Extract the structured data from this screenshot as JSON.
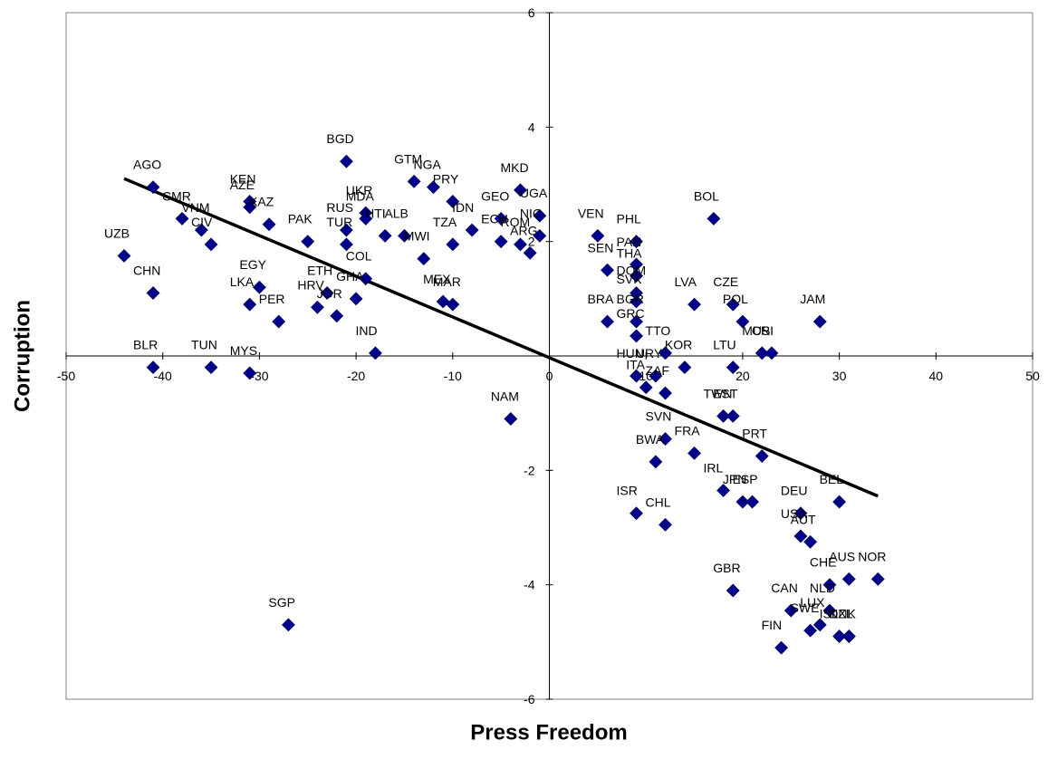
{
  "chart_data": {
    "type": "scatter",
    "title": "",
    "xlabel": "Press Freedom",
    "ylabel": "Corruption",
    "xlim": [
      -50,
      50
    ],
    "ylim": [
      -6,
      6
    ],
    "x_ticks": [
      -50,
      -40,
      -30,
      -20,
      -10,
      0,
      10,
      20,
      30,
      40,
      50
    ],
    "y_ticks": [
      -6,
      -4,
      -2,
      0,
      2,
      4,
      6
    ],
    "grid": false,
    "legend": "none",
    "marker_color": "#00008B",
    "trendline": {
      "color": "#000000",
      "x": [
        -44,
        34
      ],
      "y": [
        3.1,
        -2.45
      ]
    },
    "points": [
      {
        "label": "AGO",
        "x": -41.0,
        "y": 2.95
      },
      {
        "label": "CMR",
        "x": -38.0,
        "y": 2.4
      },
      {
        "label": "VNM",
        "x": -36.0,
        "y": 2.2
      },
      {
        "label": "CIV",
        "x": -35.0,
        "y": 1.95
      },
      {
        "label": "UZB",
        "x": -44.0,
        "y": 1.75
      },
      {
        "label": "CHN",
        "x": -41.0,
        "y": 1.1
      },
      {
        "label": "BLR",
        "x": -41.0,
        "y": -0.2
      },
      {
        "label": "TUN",
        "x": -35.0,
        "y": -0.2
      },
      {
        "label": "MYS",
        "x": -31.0,
        "y": -0.3
      },
      {
        "label": "KEN",
        "x": -31.0,
        "y": 2.7
      },
      {
        "label": "AZE",
        "x": -31.0,
        "y": 2.6
      },
      {
        "label": "KAZ",
        "x": -29.0,
        "y": 2.3
      },
      {
        "label": "EGY",
        "x": -30.0,
        "y": 1.2
      },
      {
        "label": "LKA",
        "x": -31.0,
        "y": 0.9
      },
      {
        "label": "PER",
        "x": -28.0,
        "y": 0.6
      },
      {
        "label": "PAK",
        "x": -25.0,
        "y": 2.0
      },
      {
        "label": "BGD",
        "x": -21.0,
        "y": 3.4
      },
      {
        "label": "UKR",
        "x": -19.0,
        "y": 2.5
      },
      {
        "label": "RUS",
        "x": -21.0,
        "y": 2.2
      },
      {
        "label": "MDA",
        "x": -19.0,
        "y": 2.4
      },
      {
        "label": "TUR",
        "x": -21.0,
        "y": 1.95
      },
      {
        "label": "ETH",
        "x": -23.0,
        "y": 1.1
      },
      {
        "label": "COL",
        "x": -19.0,
        "y": 1.35
      },
      {
        "label": "HRV",
        "x": -24.0,
        "y": 0.85
      },
      {
        "label": "GHA",
        "x": -20.0,
        "y": 1.0
      },
      {
        "label": "JOR",
        "x": -22.0,
        "y": 0.7
      },
      {
        "label": "SGP",
        "x": -27.0,
        "y": -4.7
      },
      {
        "label": "HTI",
        "x": -17.0,
        "y": 2.1
      },
      {
        "label": "ALB",
        "x": -15.0,
        "y": 2.1
      },
      {
        "label": "GTM",
        "x": -14.0,
        "y": 3.05
      },
      {
        "label": "NGA",
        "x": -12.0,
        "y": 2.95
      },
      {
        "label": "PRY",
        "x": -10.0,
        "y": 2.7
      },
      {
        "label": "IDN",
        "x": -8.0,
        "y": 2.2
      },
      {
        "label": "MWI",
        "x": -13.0,
        "y": 1.7
      },
      {
        "label": "TZA",
        "x": -10.0,
        "y": 1.95
      },
      {
        "label": "MEX",
        "x": -11.0,
        "y": 0.95
      },
      {
        "label": "MAR",
        "x": -10.0,
        "y": 0.9
      },
      {
        "label": "IND",
        "x": -18.0,
        "y": 0.05
      },
      {
        "label": "MKD",
        "x": -3.0,
        "y": 2.9
      },
      {
        "label": "GEO",
        "x": -5.0,
        "y": 2.4
      },
      {
        "label": "ECU",
        "x": -5.0,
        "y": 2.0
      },
      {
        "label": "ROM",
        "x": -3.0,
        "y": 1.95
      },
      {
        "label": "UGA",
        "x": -1.0,
        "y": 2.45
      },
      {
        "label": "NIC",
        "x": -1.0,
        "y": 2.1
      },
      {
        "label": "ARG",
        "x": -2.0,
        "y": 1.8
      },
      {
        "label": "NAM",
        "x": -4.0,
        "y": -1.1
      },
      {
        "label": "VEN",
        "x": 5.0,
        "y": 2.1
      },
      {
        "label": "PHL",
        "x": 9.0,
        "y": 2.0
      },
      {
        "label": "SEN",
        "x": 6.0,
        "y": 1.5
      },
      {
        "label": "PAN",
        "x": 9.0,
        "y": 1.6
      },
      {
        "label": "THA",
        "x": 9.0,
        "y": 1.4
      },
      {
        "label": "DOM",
        "x": 9.0,
        "y": 1.1
      },
      {
        "label": "SVK",
        "x": 9.0,
        "y": 0.95
      },
      {
        "label": "BRA",
        "x": 6.0,
        "y": 0.6
      },
      {
        "label": "BGR",
        "x": 9.0,
        "y": 0.6
      },
      {
        "label": "GRC",
        "x": 9.0,
        "y": 0.35
      },
      {
        "label": "HUN",
        "x": 9.0,
        "y": -0.35
      },
      {
        "label": "URY",
        "x": 11.0,
        "y": -0.35
      },
      {
        "label": "ITA",
        "x": 10.0,
        "y": -0.55
      },
      {
        "label": "TTO",
        "x": 12.0,
        "y": 0.05
      },
      {
        "label": "KOR",
        "x": 14.0,
        "y": -0.2
      },
      {
        "label": "ZAF",
        "x": 12.0,
        "y": -0.65
      },
      {
        "label": "SVN",
        "x": 12.0,
        "y": -1.45
      },
      {
        "label": "BWA",
        "x": 11.0,
        "y": -1.85
      },
      {
        "label": "ISR",
        "x": 9.0,
        "y": -2.75
      },
      {
        "label": "CHL",
        "x": 12.0,
        "y": -2.95
      },
      {
        "label": "FRA",
        "x": 15.0,
        "y": -1.7
      },
      {
        "label": "LVA",
        "x": 15.0,
        "y": 0.9
      },
      {
        "label": "BOL",
        "x": 17.0,
        "y": 2.4
      },
      {
        "label": "CZE",
        "x": 19.0,
        "y": 0.9
      },
      {
        "label": "POL",
        "x": 20.0,
        "y": 0.6
      },
      {
        "label": "MUS",
        "x": 22.0,
        "y": 0.05
      },
      {
        "label": "CRI",
        "x": 23.0,
        "y": 0.05
      },
      {
        "label": "LTU",
        "x": 19.0,
        "y": -0.2
      },
      {
        "label": "TWN",
        "x": 18.0,
        "y": -1.05
      },
      {
        "label": "EST",
        "x": 19.0,
        "y": -1.05
      },
      {
        "label": "PRT",
        "x": 22.0,
        "y": -1.75
      },
      {
        "label": "JAM",
        "x": 28.0,
        "y": 0.6
      },
      {
        "label": "IRL",
        "x": 18.0,
        "y": -2.35
      },
      {
        "label": "JPN",
        "x": 20.0,
        "y": -2.55
      },
      {
        "label": "ESP",
        "x": 21.0,
        "y": -2.55
      },
      {
        "label": "GBR",
        "x": 19.0,
        "y": -4.1
      },
      {
        "label": "DEU",
        "x": 26.0,
        "y": -2.75
      },
      {
        "label": "USA",
        "x": 26.0,
        "y": -3.15
      },
      {
        "label": "AUT",
        "x": 27.0,
        "y": -3.25
      },
      {
        "label": "BEL",
        "x": 30.0,
        "y": -2.55
      },
      {
        "label": "AUS",
        "x": 31.0,
        "y": -3.9
      },
      {
        "label": "CHE",
        "x": 29.0,
        "y": -4.0
      },
      {
        "label": "NOR",
        "x": 34.0,
        "y": -3.9
      },
      {
        "label": "CAN",
        "x": 25.0,
        "y": -4.45
      },
      {
        "label": "NLD",
        "x": 29.0,
        "y": -4.45
      },
      {
        "label": "LUX",
        "x": 28.0,
        "y": -4.7
      },
      {
        "label": "SWE",
        "x": 27.0,
        "y": -4.8
      },
      {
        "label": "ISL",
        "x": 30.0,
        "y": -4.9
      },
      {
        "label": "DNK",
        "x": 31.0,
        "y": -4.9
      },
      {
        "label": "NZL",
        "x": 31.0,
        "y": -4.9
      },
      {
        "label": "FIN",
        "x": 24.0,
        "y": -5.1
      }
    ]
  }
}
